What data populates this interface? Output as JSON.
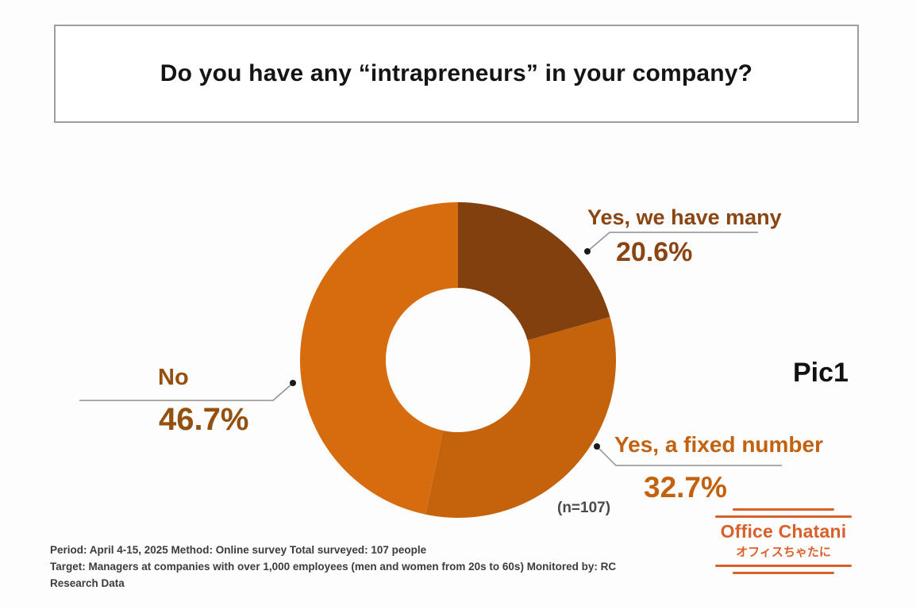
{
  "title": "Do you have any “intrapreneurs” in your company?",
  "figure_label": "Pic1",
  "chart_data": {
    "type": "pie",
    "donut": true,
    "start_angle_deg": 0,
    "direction": "clockwise",
    "title": "Do you have any “intrapreneurs” in your company?",
    "note": "(n=107)",
    "sample_size": 107,
    "segments": [
      {
        "label": "Yes, we have many",
        "value": 20.6,
        "display": "20.6%",
        "color": "#82400F",
        "label_color": "#8B4513"
      },
      {
        "label": "Yes, a fixed number",
        "value": 32.7,
        "display": "32.7%",
        "color": "#C5630D",
        "label_color": "#C2610E"
      },
      {
        "label": "No",
        "value": 46.7,
        "display": "46.7%",
        "color": "#D76C0E",
        "label_color": "#94500F"
      }
    ]
  },
  "footer_lines": [
    "Period: April 4-15, 2025 Method: Online survey Total surveyed: 107 people",
    "Target: Managers at companies with over 1,000 employees (men and women from 20s to 60s) Monitored by: RC",
    "Research Data"
  ],
  "logo": {
    "name": "Office Chatani",
    "subtitle": "オフィスちゃたに",
    "color": "#D8602A"
  },
  "colors": {
    "leader_line": "#909090",
    "leader_dot": "#1a1a1a",
    "title_border": "#9aa0a2"
  }
}
